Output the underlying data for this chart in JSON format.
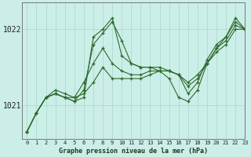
{
  "title": "Graphe pression niveau de la mer (hPa)",
  "bg_color": "#cceee8",
  "grid_color": "#aaddcc",
  "line_color": "#2d6a2d",
  "xlim": [
    -0.5,
    23
  ],
  "ylim": [
    1020.55,
    1022.35
  ],
  "yticks": [
    1021,
    1022
  ],
  "xticks": [
    0,
    1,
    2,
    3,
    4,
    5,
    6,
    7,
    8,
    9,
    10,
    11,
    12,
    13,
    14,
    15,
    16,
    17,
    18,
    19,
    20,
    21,
    22,
    23
  ],
  "series": [
    [
      1020.65,
      1020.9,
      1021.1,
      1021.15,
      1021.1,
      1021.05,
      1021.1,
      1021.9,
      1022.0,
      1022.15,
      1021.65,
      1021.55,
      1021.5,
      1021.5,
      1021.45,
      1021.35,
      1021.1,
      1021.05,
      1021.2,
      1021.55,
      1021.75,
      1021.9,
      1022.15,
      1022.0
    ],
    [
      1020.65,
      1020.9,
      1021.1,
      1021.15,
      1021.1,
      1021.05,
      1021.2,
      1021.8,
      1021.95,
      1022.1,
      1021.85,
      1021.55,
      1021.5,
      1021.5,
      1021.5,
      1021.45,
      1021.4,
      1021.15,
      1021.3,
      1021.6,
      1021.8,
      1021.9,
      1022.1,
      1022.0
    ],
    [
      1020.65,
      1020.9,
      1021.1,
      1021.15,
      1021.1,
      1021.1,
      1021.3,
      1021.55,
      1021.75,
      1021.55,
      1021.45,
      1021.4,
      1021.4,
      1021.45,
      1021.45,
      1021.45,
      1021.4,
      1021.25,
      1021.35,
      1021.55,
      1021.75,
      1021.85,
      1022.05,
      1022.0
    ],
    [
      1020.65,
      1020.9,
      1021.1,
      1021.2,
      1021.15,
      1021.1,
      1021.15,
      1021.3,
      1021.5,
      1021.35,
      1021.35,
      1021.35,
      1021.35,
      1021.4,
      1021.45,
      1021.45,
      1021.4,
      1021.3,
      1021.4,
      1021.55,
      1021.7,
      1021.8,
      1022.0,
      1022.0
    ]
  ]
}
